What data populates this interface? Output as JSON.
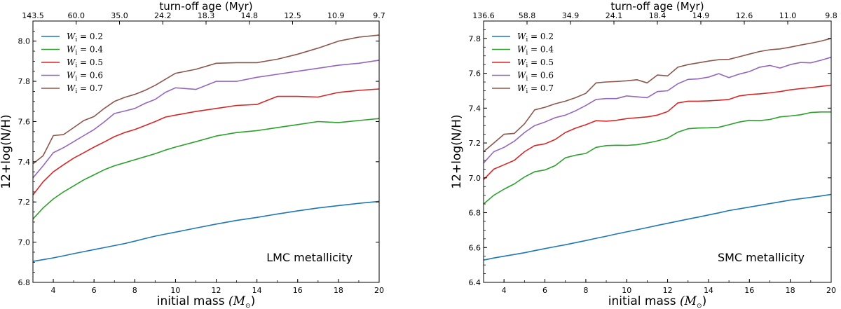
{
  "chart_data": [
    {
      "type": "line",
      "xlabel": "initial mass",
      "xlabel_unit": "(M",
      "xlabel_unit_sub": "⊙",
      "xlabel_unit_close": ")",
      "ylabel": "12+log(N/H)",
      "top_axis_label": "turn-off age (Myr)",
      "top_ticks": [
        "143.5",
        "60.0",
        "35.0",
        "24.2",
        "18.3",
        "14.8",
        "12.5",
        "10.9",
        "9.7"
      ],
      "annotation": "LMC metallicity",
      "legend_position": "upper-left",
      "xlim": [
        3,
        20
      ],
      "ylim": [
        6.8,
        8.1
      ],
      "xticks": [
        "4",
        "6",
        "8",
        "10",
        "12",
        "14",
        "16",
        "18",
        "20"
      ],
      "yticks": [
        "6.8",
        "7.0",
        "7.2",
        "7.4",
        "7.6",
        "7.8",
        "8.0"
      ],
      "x": [
        3,
        3.5,
        4,
        4.5,
        5,
        5.5,
        6,
        6.5,
        7,
        7.5,
        8,
        8.5,
        9,
        9.5,
        10,
        11,
        12,
        13,
        14,
        15,
        16,
        17,
        18,
        19,
        20
      ],
      "series": [
        {
          "name": "0.2",
          "color": "#1f77b4",
          "values": [
            6.905,
            6.913,
            6.922,
            6.932,
            6.943,
            6.953,
            6.963,
            6.973,
            6.983,
            6.993,
            7.005,
            7.018,
            7.03,
            7.04,
            7.05,
            7.07,
            7.09,
            7.108,
            7.123,
            7.14,
            7.156,
            7.17,
            7.182,
            7.193,
            7.203
          ]
        },
        {
          "name": "0.4",
          "color": "#2ca02c",
          "values": [
            7.115,
            7.17,
            7.215,
            7.25,
            7.28,
            7.31,
            7.335,
            7.36,
            7.38,
            7.395,
            7.41,
            7.425,
            7.44,
            7.458,
            7.473,
            7.5,
            7.528,
            7.545,
            7.555,
            7.57,
            7.585,
            7.6,
            7.595,
            7.605,
            7.615
          ]
        },
        {
          "name": "0.5",
          "color": "#d62728",
          "values": [
            7.235,
            7.3,
            7.35,
            7.385,
            7.418,
            7.445,
            7.473,
            7.498,
            7.525,
            7.545,
            7.56,
            7.58,
            7.6,
            7.622,
            7.632,
            7.65,
            7.665,
            7.68,
            7.685,
            7.725,
            7.725,
            7.722,
            7.745,
            7.755,
            7.762
          ]
        },
        {
          "name": "0.6",
          "color": "#9467bd",
          "values": [
            7.32,
            7.38,
            7.445,
            7.47,
            7.5,
            7.53,
            7.56,
            7.598,
            7.64,
            7.652,
            7.665,
            7.69,
            7.71,
            7.745,
            7.768,
            7.76,
            7.8,
            7.8,
            7.82,
            7.835,
            7.85,
            7.865,
            7.88,
            7.89,
            7.905
          ]
        },
        {
          "name": "0.7",
          "color": "#8c564b",
          "values": [
            7.39,
            7.43,
            7.53,
            7.535,
            7.57,
            7.605,
            7.625,
            7.665,
            7.7,
            7.72,
            7.735,
            7.755,
            7.78,
            7.81,
            7.84,
            7.86,
            7.89,
            7.893,
            7.893,
            7.91,
            7.935,
            7.965,
            8.0,
            8.02,
            8.03
          ]
        }
      ]
    },
    {
      "type": "line",
      "xlabel": "initial mass",
      "xlabel_unit": "(M",
      "xlabel_unit_sub": "⊙",
      "xlabel_unit_close": ")",
      "ylabel": "12+log(N/H)",
      "top_axis_label": "turn-off age (Myr)",
      "top_ticks": [
        "136.6",
        "58.8",
        "34.9",
        "24.1",
        "18.4",
        "14.9",
        "12.6",
        "11.0",
        "9.8"
      ],
      "annotation": "SMC metallicity",
      "legend_position": "upper-left",
      "xlim": [
        3,
        20
      ],
      "ylim": [
        6.4,
        7.9
      ],
      "xticks": [
        "4",
        "6",
        "8",
        "10",
        "12",
        "14",
        "16",
        "18",
        "20"
      ],
      "yticks": [
        "6.4",
        "6.6",
        "6.8",
        "7.0",
        "7.2",
        "7.4",
        "7.6",
        "7.8"
      ],
      "x": [
        3,
        3.5,
        4,
        4.5,
        5,
        5.5,
        6,
        6.5,
        7,
        7.5,
        8,
        8.5,
        9,
        9.5,
        10,
        10.5,
        11,
        11.5,
        12,
        12.5,
        13,
        13.5,
        14,
        14.5,
        15,
        15.5,
        16,
        16.5,
        17,
        17.5,
        18,
        18.5,
        19,
        19.5,
        20
      ],
      "series": [
        {
          "name": "0.2",
          "color": "#1f77b4",
          "values": [
            6.528,
            6.54,
            6.55,
            6.56,
            6.57,
            6.582,
            6.594,
            6.605,
            6.616,
            6.628,
            6.64,
            6.653,
            6.665,
            6.678,
            6.69,
            6.702,
            6.714,
            6.727,
            6.739,
            6.751,
            6.763,
            6.775,
            6.787,
            6.799,
            6.812,
            6.822,
            6.832,
            6.842,
            6.852,
            6.862,
            6.872,
            6.88,
            6.888,
            6.896,
            6.905
          ]
        },
        {
          "name": "0.4",
          "color": "#2ca02c",
          "values": [
            6.85,
            6.9,
            6.935,
            6.965,
            7.005,
            7.035,
            7.045,
            7.07,
            7.115,
            7.13,
            7.14,
            7.175,
            7.185,
            7.187,
            7.186,
            7.19,
            7.2,
            7.212,
            7.228,
            7.262,
            7.282,
            7.286,
            7.287,
            7.29,
            7.305,
            7.32,
            7.33,
            7.328,
            7.335,
            7.35,
            7.355,
            7.362,
            7.375,
            7.378,
            7.378
          ]
        },
        {
          "name": "0.5",
          "color": "#d62728",
          "values": [
            6.99,
            7.05,
            7.075,
            7.1,
            7.15,
            7.185,
            7.195,
            7.22,
            7.26,
            7.285,
            7.305,
            7.328,
            7.325,
            7.33,
            7.34,
            7.345,
            7.35,
            7.36,
            7.38,
            7.43,
            7.44,
            7.44,
            7.442,
            7.445,
            7.45,
            7.47,
            7.478,
            7.482,
            7.488,
            7.495,
            7.505,
            7.512,
            7.518,
            7.525,
            7.532
          ]
        },
        {
          "name": "0.6",
          "color": "#9467bd",
          "values": [
            7.085,
            7.15,
            7.175,
            7.21,
            7.26,
            7.3,
            7.32,
            7.345,
            7.36,
            7.385,
            7.415,
            7.45,
            7.455,
            7.455,
            7.47,
            7.465,
            7.46,
            7.495,
            7.5,
            7.54,
            7.565,
            7.568,
            7.578,
            7.598,
            7.575,
            7.595,
            7.61,
            7.635,
            7.645,
            7.63,
            7.65,
            7.662,
            7.66,
            7.675,
            7.692
          ]
        },
        {
          "name": "0.7",
          "color": "#8c564b",
          "values": [
            7.15,
            7.2,
            7.25,
            7.255,
            7.31,
            7.39,
            7.405,
            7.425,
            7.44,
            7.46,
            7.485,
            7.545,
            7.55,
            7.553,
            7.557,
            7.563,
            7.545,
            7.59,
            7.585,
            7.635,
            7.65,
            7.66,
            7.67,
            7.678,
            7.68,
            7.695,
            7.71,
            7.725,
            7.735,
            7.74,
            7.75,
            7.762,
            7.773,
            7.785,
            7.8
          ]
        }
      ]
    }
  ]
}
